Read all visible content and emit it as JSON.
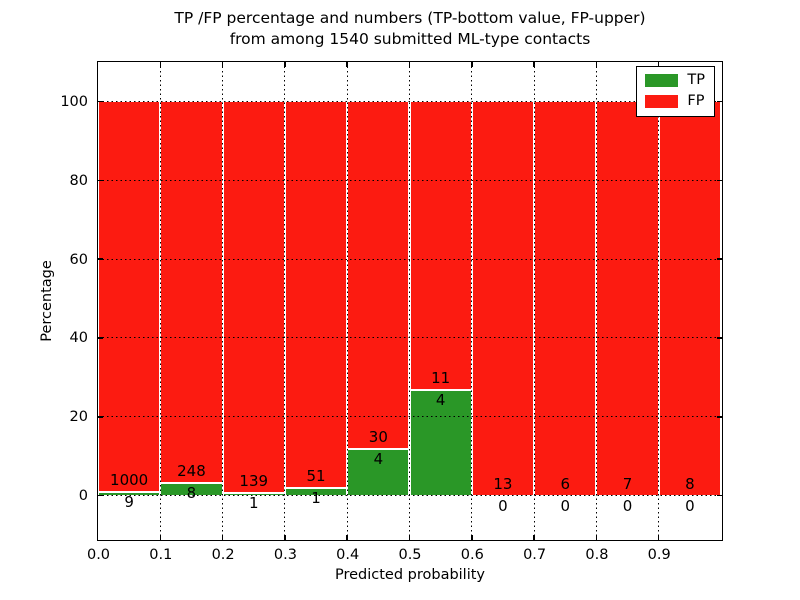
{
  "figure": {
    "title_line1": "TP /FP percentage and numbers (TP-bottom value, FP-upper)",
    "title_line2": "from among 1540 submitted ML-type contacts"
  },
  "chart_data": {
    "type": "bar",
    "stacked": true,
    "normalized_to_percent": true,
    "title": "TP /FP percentage and numbers (TP-bottom value, FP-upper) from among 1540 submitted ML-type contacts",
    "total_contacts": 1540,
    "xlabel": "Predicted probability",
    "ylabel": "Percentage",
    "ylim": [
      -11,
      110
    ],
    "yticks": [
      0,
      20,
      40,
      60,
      80,
      100
    ],
    "xticks": [
      "0.0",
      "0.1",
      "0.2",
      "0.3",
      "0.4",
      "0.5",
      "0.6",
      "0.7",
      "0.8",
      "0.9"
    ],
    "grid": "dotted",
    "legend_position": "upper right",
    "legend": [
      {
        "label": "TP",
        "color": "#2a9727"
      },
      {
        "label": "FP",
        "color": "#fc1b11"
      }
    ],
    "bins": [
      {
        "range": "0.0-0.1",
        "tp": 9,
        "fp": 1000,
        "tp_pct": 0.89
      },
      {
        "range": "0.1-0.2",
        "tp": 8,
        "fp": 248,
        "tp_pct": 3.13
      },
      {
        "range": "0.2-0.3",
        "tp": 1,
        "fp": 139,
        "tp_pct": 0.71
      },
      {
        "range": "0.3-0.4",
        "tp": 1,
        "fp": 51,
        "tp_pct": 1.92
      },
      {
        "range": "0.4-0.5",
        "tp": 4,
        "fp": 30,
        "tp_pct": 11.76
      },
      {
        "range": "0.5-0.6",
        "tp": 4,
        "fp": 11,
        "tp_pct": 26.67
      },
      {
        "range": "0.6-0.7",
        "tp": 0,
        "fp": 13,
        "tp_pct": 0
      },
      {
        "range": "0.7-0.8",
        "tp": 0,
        "fp": 6,
        "tp_pct": 0
      },
      {
        "range": "0.8-0.9",
        "tp": 0,
        "fp": 7,
        "tp_pct": 0
      },
      {
        "range": "0.9-1.0",
        "tp": 0,
        "fp": 8,
        "tp_pct": 0
      }
    ],
    "colors": {
      "tp": "#2a9727",
      "fp": "#fc1b11",
      "bar_edge": "#ffffff",
      "text": "#000000",
      "background": "#ffffff"
    }
  }
}
